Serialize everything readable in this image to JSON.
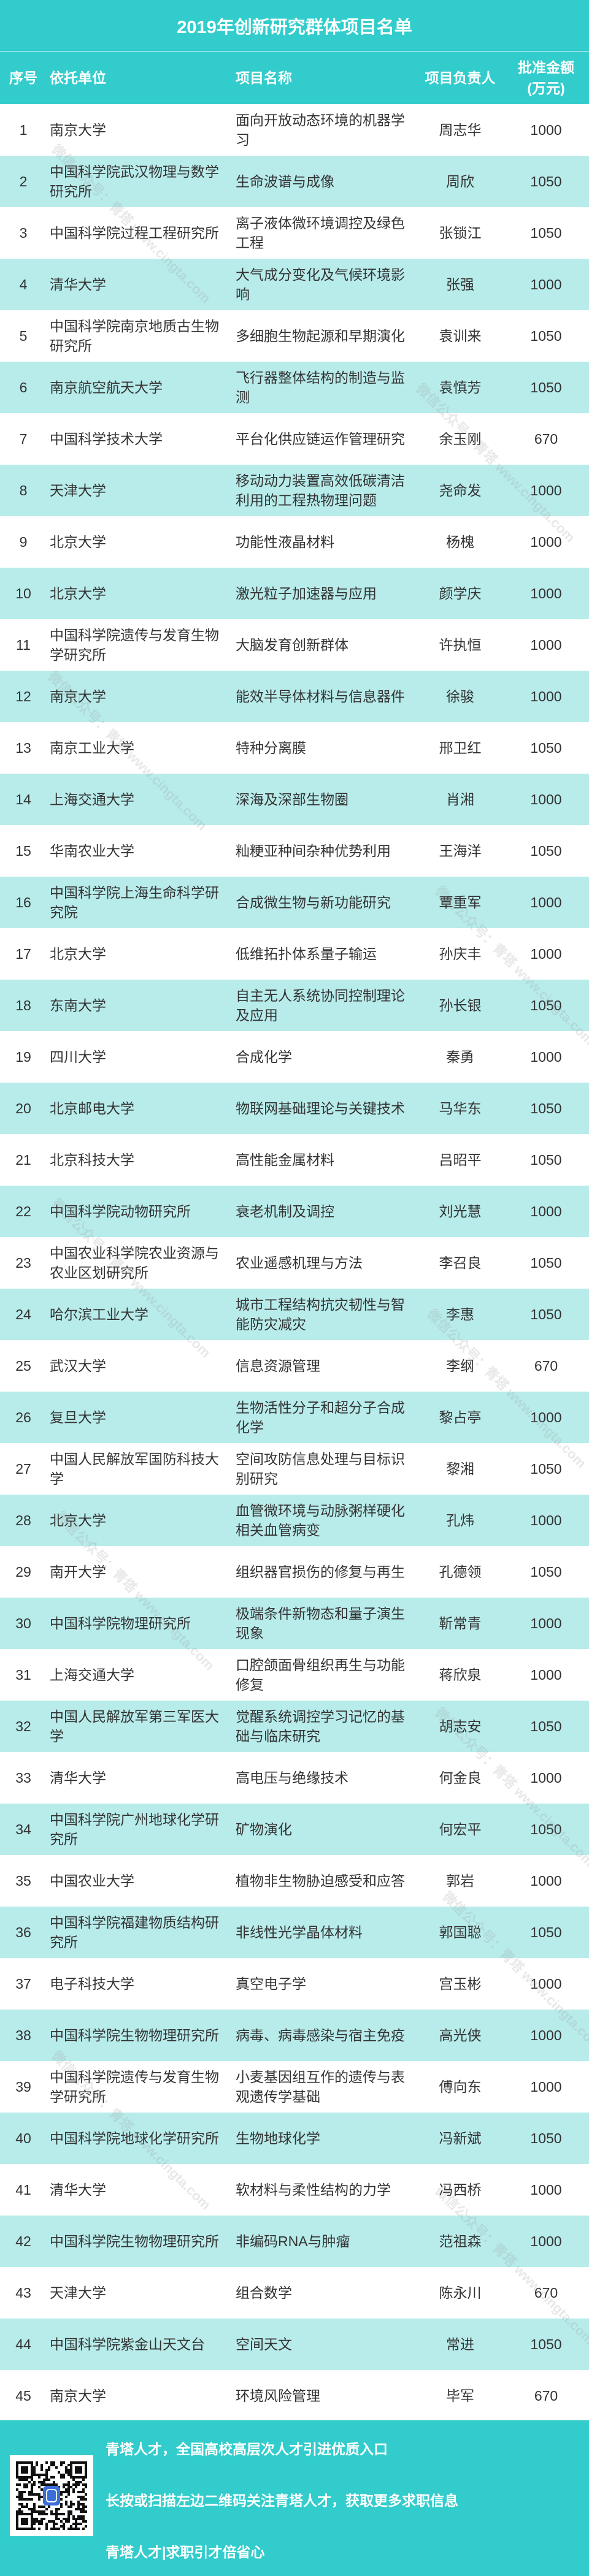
{
  "title": "2019年创新研究群体项目名单",
  "headers": {
    "seq": "序号",
    "unit": "依托单位",
    "project": "项目名称",
    "person": "项目负责人",
    "amount_line1": "批准金额",
    "amount_line2": "(万元)"
  },
  "colors": {
    "header_bg": "#33CCCC",
    "alt_row_bg": "#B8ECEB",
    "text": "#333333"
  },
  "rows": [
    {
      "seq": "1",
      "unit": "南京大学",
      "project": "面向开放动态环境的机器学习",
      "person": "周志华",
      "amount": "1000"
    },
    {
      "seq": "2",
      "unit": "中国科学院武汉物理与数学研究所",
      "project": "生命波谱与成像",
      "person": "周欣",
      "amount": "1050"
    },
    {
      "seq": "3",
      "unit": "中国科学院过程工程研究所",
      "project": "离子液体微环境调控及绿色工程",
      "person": "张锁江",
      "amount": "1050"
    },
    {
      "seq": "4",
      "unit": "清华大学",
      "project": "大气成分变化及气候环境影响",
      "person": "张强",
      "amount": "1000"
    },
    {
      "seq": "5",
      "unit": "中国科学院南京地质古生物研究所",
      "project": "多细胞生物起源和早期演化",
      "person": "袁训来",
      "amount": "1050"
    },
    {
      "seq": "6",
      "unit": "南京航空航天大学",
      "project": "飞行器整体结构的制造与监测",
      "person": "袁慎芳",
      "amount": "1050"
    },
    {
      "seq": "7",
      "unit": "中国科学技术大学",
      "project": "平台化供应链运作管理研究",
      "person": "余玉刚",
      "amount": "670"
    },
    {
      "seq": "8",
      "unit": "天津大学",
      "project": "移动动力装置高效低碳清洁利用的工程热物理问题",
      "person": "尧命发",
      "amount": "1000"
    },
    {
      "seq": "9",
      "unit": "北京大学",
      "project": "功能性液晶材料",
      "person": "杨槐",
      "amount": "1000"
    },
    {
      "seq": "10",
      "unit": "北京大学",
      "project": "激光粒子加速器与应用",
      "person": "颜学庆",
      "amount": "1000"
    },
    {
      "seq": "11",
      "unit": "中国科学院遗传与发育生物学研究所",
      "project": "大脑发育创新群体",
      "person": "许执恒",
      "amount": "1000"
    },
    {
      "seq": "12",
      "unit": "南京大学",
      "project": "能效半导体材料与信息器件",
      "person": "徐骏",
      "amount": "1000"
    },
    {
      "seq": "13",
      "unit": "南京工业大学",
      "project": "特种分离膜",
      "person": "邢卫红",
      "amount": "1050"
    },
    {
      "seq": "14",
      "unit": "上海交通大学",
      "project": "深海及深部生物圈",
      "person": "肖湘",
      "amount": "1000"
    },
    {
      "seq": "15",
      "unit": "华南农业大学",
      "project": "籼粳亚种间杂种优势利用",
      "person": "王海洋",
      "amount": "1050"
    },
    {
      "seq": "16",
      "unit": "中国科学院上海生命科学研究院",
      "project": "合成微生物与新功能研究",
      "person": "覃重军",
      "amount": "1000"
    },
    {
      "seq": "17",
      "unit": "北京大学",
      "project": "低维拓扑体系量子输运",
      "person": "孙庆丰",
      "amount": "1000"
    },
    {
      "seq": "18",
      "unit": "东南大学",
      "project": "自主无人系统协同控制理论及应用",
      "person": "孙长银",
      "amount": "1050"
    },
    {
      "seq": "19",
      "unit": "四川大学",
      "project": "合成化学",
      "person": "秦勇",
      "amount": "1000"
    },
    {
      "seq": "20",
      "unit": "北京邮电大学",
      "project": "物联网基础理论与关键技术",
      "person": "马华东",
      "amount": "1050"
    },
    {
      "seq": "21",
      "unit": "北京科技大学",
      "project": "高性能金属材料",
      "person": "吕昭平",
      "amount": "1050"
    },
    {
      "seq": "22",
      "unit": "中国科学院动物研究所",
      "project": "衰老机制及调控",
      "person": "刘光慧",
      "amount": "1000"
    },
    {
      "seq": "23",
      "unit": "中国农业科学院农业资源与农业区划研究所",
      "project": "农业遥感机理与方法",
      "person": "李召良",
      "amount": "1050"
    },
    {
      "seq": "24",
      "unit": "哈尔滨工业大学",
      "project": "城市工程结构抗灾韧性与智能防灾减灾",
      "person": "李惠",
      "amount": "1050"
    },
    {
      "seq": "25",
      "unit": "武汉大学",
      "project": "信息资源管理",
      "person": "李纲",
      "amount": "670"
    },
    {
      "seq": "26",
      "unit": "复旦大学",
      "project": "生物活性分子和超分子合成化学",
      "person": "黎占亭",
      "amount": "1000"
    },
    {
      "seq": "27",
      "unit": "中国人民解放军国防科技大学",
      "project": "空间攻防信息处理与目标识别研究",
      "person": "黎湘",
      "amount": "1050"
    },
    {
      "seq": "28",
      "unit": "北京大学",
      "project": "血管微环境与动脉粥样硬化相关血管病变",
      "person": "孔炜",
      "amount": "1000"
    },
    {
      "seq": "29",
      "unit": "南开大学",
      "project": "组织器官损伤的修复与再生",
      "person": "孔德领",
      "amount": "1050"
    },
    {
      "seq": "30",
      "unit": "中国科学院物理研究所",
      "project": "极端条件新物态和量子演生现象",
      "person": "靳常青",
      "amount": "1000"
    },
    {
      "seq": "31",
      "unit": "上海交通大学",
      "project": "口腔颌面骨组织再生与功能修复",
      "person": "蒋欣泉",
      "amount": "1000"
    },
    {
      "seq": "32",
      "unit": "中国人民解放军第三军医大学",
      "project": "觉醒系统调控学习记忆的基础与临床研究",
      "person": "胡志安",
      "amount": "1050"
    },
    {
      "seq": "33",
      "unit": "清华大学",
      "project": "高电压与绝缘技术",
      "person": "何金良",
      "amount": "1000"
    },
    {
      "seq": "34",
      "unit": "中国科学院广州地球化学研究所",
      "project": "矿物演化",
      "person": "何宏平",
      "amount": "1050"
    },
    {
      "seq": "35",
      "unit": "中国农业大学",
      "project": "植物非生物胁迫感受和应答",
      "person": "郭岩",
      "amount": "1000"
    },
    {
      "seq": "36",
      "unit": "中国科学院福建物质结构研究所",
      "project": "非线性光学晶体材料",
      "person": "郭国聪",
      "amount": "1050"
    },
    {
      "seq": "37",
      "unit": "电子科技大学",
      "project": "真空电子学",
      "person": "宫玉彬",
      "amount": "1000"
    },
    {
      "seq": "38",
      "unit": "中国科学院生物物理研究所",
      "project": "病毒、病毒感染与宿主免疫",
      "person": "高光侠",
      "amount": "1000"
    },
    {
      "seq": "39",
      "unit": "中国科学院遗传与发育生物学研究所",
      "project": "小麦基因组互作的遗传与表观遗传学基础",
      "person": "傅向东",
      "amount": "1000"
    },
    {
      "seq": "40",
      "unit": "中国科学院地球化学研究所",
      "project": "生物地球化学",
      "person": "冯新斌",
      "amount": "1050"
    },
    {
      "seq": "41",
      "unit": "清华大学",
      "project": "软材料与柔性结构的力学",
      "person": "冯西桥",
      "amount": "1000"
    },
    {
      "seq": "42",
      "unit": "中国科学院生物物理研究所",
      "project": "非编码RNA与肿瘤",
      "person": "范祖森",
      "amount": "1000"
    },
    {
      "seq": "43",
      "unit": "天津大学",
      "project": "组合数学",
      "person": "陈永川",
      "amount": "670"
    },
    {
      "seq": "44",
      "unit": "中国科学院紫金山天文台",
      "project": "空间天文",
      "person": "常进",
      "amount": "1050"
    },
    {
      "seq": "45",
      "unit": "南京大学",
      "project": "环境风险管理",
      "person": "毕军",
      "amount": "670"
    }
  ],
  "footer": {
    "line1": "青塔人才，全国高校高层次人才引进优质入口",
    "line2": "长按或扫描左边二维码关注青塔人才，获取更多求职信息",
    "line3": "青塔人才|求职引才倍省心",
    "qr_icon": "qr-code-icon"
  },
  "watermark": "微信公众号：青塔 www.cingta.com"
}
